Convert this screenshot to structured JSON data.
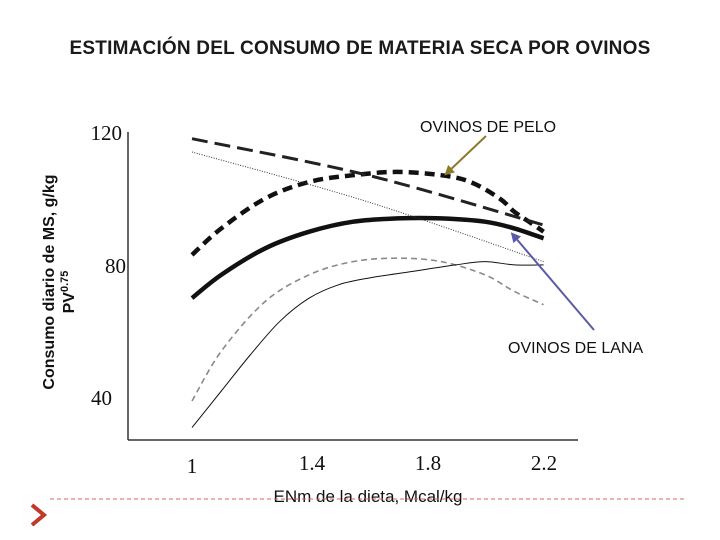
{
  "title": "ESTIMACIÓN DEL CONSUMO DE MATERIA SECA POR OVINOS",
  "colors": {
    "annotation_arrow_pelo": "#8B7B2A",
    "annotation_arrow_lana": "#5A5AA8",
    "footer_line": "#e06060",
    "footer_arrow": "#c0392b"
  },
  "chart_data": {
    "type": "line",
    "xlabel": "ENm de la dieta, Mcal/kg",
    "ylabel": "Consumo diario de MS, g/kg",
    "ylabel_line2": "PV",
    "ylabel_sup": "0.75",
    "x_ticks": [
      "1",
      "1.4",
      "1.8",
      "2.2"
    ],
    "y_ticks": [
      "40",
      "80",
      "120"
    ],
    "xlim": [
      0.85,
      2.35
    ],
    "ylim": [
      25,
      125
    ],
    "annotations": [
      "OVINOS DE PELO",
      "OVINOS DE LANA"
    ],
    "series": [
      {
        "style": "bold-dashed",
        "x": [
          1.0,
          1.1,
          1.25,
          1.4,
          1.55,
          1.7,
          1.85,
          1.95,
          2.05,
          2.1,
          2.15,
          2.2
        ],
        "y": [
          84,
          92,
          101,
          106,
          108,
          109,
          108,
          106,
          101,
          97,
          94,
          91
        ]
      },
      {
        "style": "bold-solid",
        "x": [
          1.0,
          1.1,
          1.25,
          1.4,
          1.55,
          1.7,
          1.85,
          2.0,
          2.1,
          2.2
        ],
        "y": [
          71,
          78,
          86,
          91,
          94,
          95,
          95,
          94,
          92,
          89
        ]
      },
      {
        "style": "bold-long-dash",
        "x": [
          1.0,
          1.6,
          2.2
        ],
        "y": [
          119,
          108,
          93
        ]
      },
      {
        "style": "thin-dotted",
        "x": [
          1.0,
          1.6,
          2.2
        ],
        "y": [
          115,
          100,
          82
        ]
      },
      {
        "style": "thin-dashed-gray",
        "x": [
          1.0,
          1.1,
          1.25,
          1.4,
          1.55,
          1.7,
          1.85,
          2.0,
          2.1,
          2.2
        ],
        "y": [
          40,
          55,
          70,
          78,
          82,
          83,
          82,
          78,
          73,
          69
        ]
      },
      {
        "style": "thin-solid",
        "x": [
          1.0,
          1.1,
          1.2,
          1.3,
          1.4,
          1.5,
          1.6,
          1.75,
          1.9,
          2.0,
          2.1,
          2.2
        ],
        "y": [
          32,
          43,
          54,
          64,
          71,
          75,
          77,
          79,
          81,
          82,
          81,
          81
        ]
      }
    ]
  }
}
